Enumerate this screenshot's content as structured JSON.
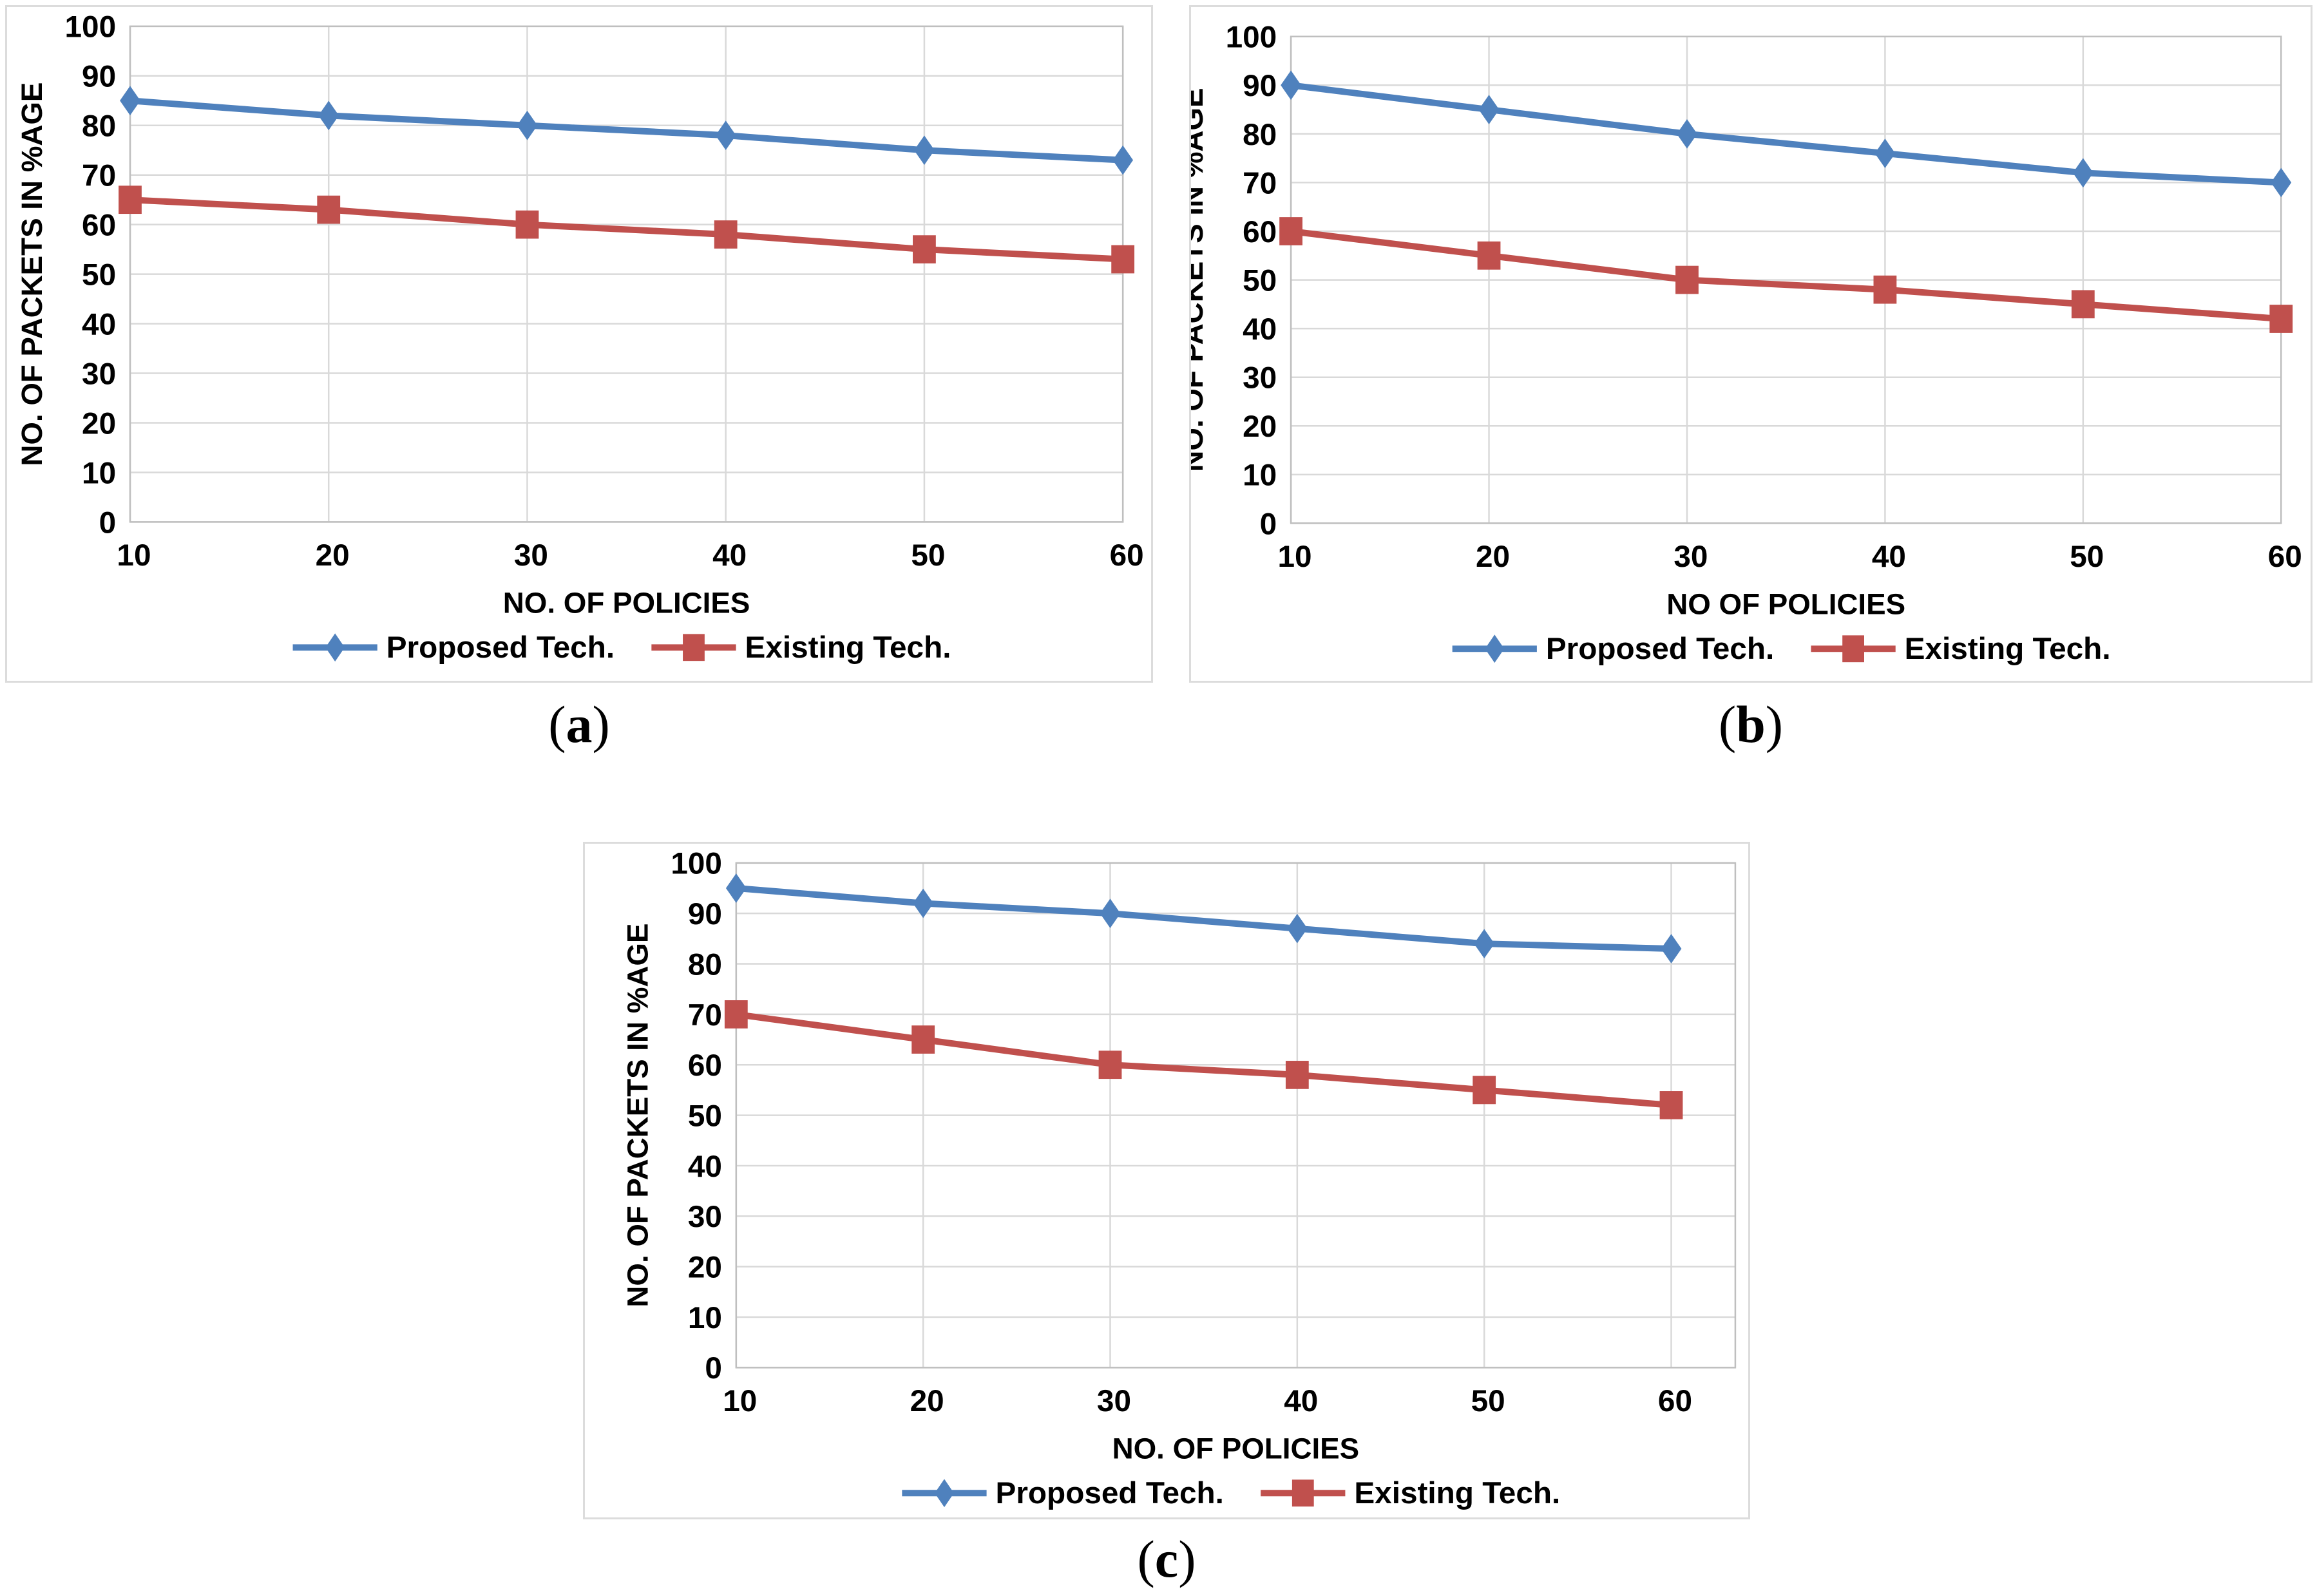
{
  "figure": {
    "background": "#ffffff",
    "captions": {
      "a": "(a)",
      "b": "(b)",
      "c": "(c)"
    }
  },
  "colors": {
    "proposed_blue": "#4f81bd",
    "existing_red": "#c0504d",
    "gridline": "#d9d9d9",
    "plot_border": "#bfbfbf",
    "panel_border": "#dcdcdc",
    "axis_text": "#000000"
  },
  "chart_data": [
    {
      "id": "a",
      "type": "line",
      "caption": "(a)",
      "title": "",
      "x": [
        10,
        20,
        30,
        40,
        50,
        60
      ],
      "xlabel": "NO. OF POLICIES",
      "ylabel": "NO. OF PACKETS  IN %AGE",
      "ylim": [
        0,
        100
      ],
      "ytick_step": 10,
      "grid": true,
      "legend_position": "bottom",
      "series": [
        {
          "name": "Proposed Tech.",
          "marker": "diamond",
          "color": "#4f81bd",
          "values": [
            85,
            82,
            80,
            78,
            75,
            73
          ]
        },
        {
          "name": "Existing Tech.",
          "marker": "square",
          "color": "#c0504d",
          "values": [
            65,
            63,
            60,
            58,
            55,
            53
          ]
        }
      ]
    },
    {
      "id": "b",
      "type": "line",
      "caption": "(b)",
      "title": "",
      "x": [
        10,
        20,
        30,
        40,
        50,
        60
      ],
      "xlabel": "NO OF POLICIES",
      "ylabel": "NO. OF PACKETS IN %AGE",
      "ylim": [
        0,
        100
      ],
      "ytick_step": 10,
      "grid": true,
      "legend_position": "bottom",
      "series": [
        {
          "name": "Proposed Tech.",
          "marker": "diamond",
          "color": "#4f81bd",
          "values": [
            90,
            85,
            80,
            76,
            72,
            70
          ]
        },
        {
          "name": "Existing Tech.",
          "marker": "square",
          "color": "#c0504d",
          "values": [
            60,
            55,
            50,
            48,
            45,
            42
          ]
        }
      ]
    },
    {
      "id": "c",
      "type": "line",
      "caption": "(c)",
      "title": "",
      "x": [
        10,
        20,
        30,
        40,
        50,
        60
      ],
      "xlabel": "NO. OF POLICIES",
      "ylabel": "NO. OF PACKETS IN %AGE",
      "ylim": [
        0,
        100
      ],
      "ytick_step": 10,
      "grid": true,
      "legend_position": "bottom",
      "series": [
        {
          "name": "Proposed Tech.",
          "marker": "diamond",
          "color": "#4f81bd",
          "values": [
            95,
            92,
            90,
            87,
            84,
            83
          ]
        },
        {
          "name": "Existing Tech.",
          "marker": "square",
          "color": "#c0504d",
          "values": [
            70,
            65,
            60,
            58,
            55,
            52
          ]
        }
      ]
    }
  ]
}
